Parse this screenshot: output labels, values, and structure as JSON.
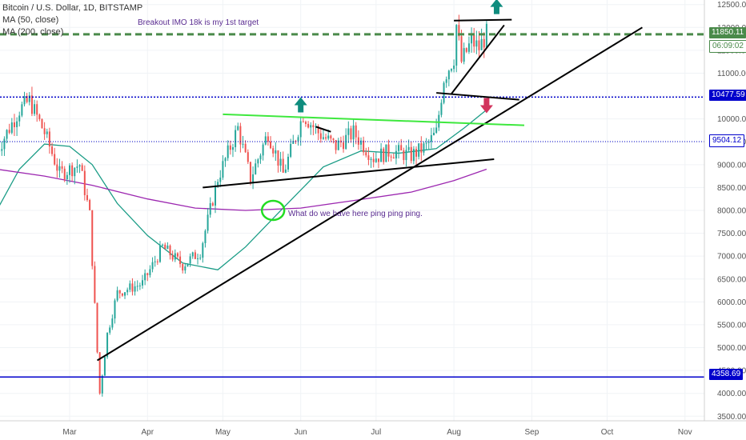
{
  "header": {
    "symbol_line": "Bitcoin / U.S. Dollar, 1D, BITSTAMP",
    "ma_fast": "MA (50, close)",
    "ma_slow": "MA (200, close)"
  },
  "annotations": {
    "breakout_note": "Breakout IMO 18k is my 1st target",
    "ping_note": "What do we have here ping ping ping."
  },
  "price_tags": {
    "last": "11850.11",
    "countdown": "06:09:02",
    "level_high": "10477.59",
    "level_mid": "9504.12",
    "level_low": "4358.69"
  },
  "colors": {
    "up_candle": "#26a69a",
    "down_candle": "#ef5350",
    "ma50": "#1a9c86",
    "ma200": "#9c27b0",
    "trend_line": "#000000",
    "resistance_line": "#3ee83e",
    "level_line": "#0000cc",
    "last_price_line": "#4a8a4a",
    "arrow_up": "#0f8c7e",
    "arrow_down": "#d2335c"
  },
  "chart_data": {
    "type": "candlestick",
    "symbol": "Bitcoin / U.S. Dollar",
    "timeframe": "1D",
    "exchange": "BITSTAMP",
    "ylim": [
      3400,
      12600
    ],
    "y_ticks": [
      3500,
      4000,
      4500,
      5000,
      5500,
      6000,
      6500,
      7000,
      7500,
      8000,
      8500,
      9000,
      9500,
      10000,
      10500,
      11000,
      11500,
      12000,
      12500
    ],
    "y_tick_labels": [
      "3500.00",
      "4000.00",
      "4500.00",
      "5000.00",
      "5500.00",
      "6000.00",
      "6500.00",
      "7000.00",
      "7500.00",
      "8000.00",
      "8500.00",
      "9000.00",
      "9500.00",
      "10000.00",
      "10500.00",
      "11000.00",
      "11500.00",
      "12000.00",
      "12500.00"
    ],
    "x_labels": [
      "Mar",
      "Apr",
      "May",
      "Jun",
      "Jul",
      "Aug",
      "Sep",
      "Oct",
      "Nov"
    ],
    "price_path": [
      [
        "2020-02-01",
        9300
      ],
      [
        "2020-02-10",
        10200
      ],
      [
        "2020-02-14",
        10400
      ],
      [
        "2020-02-20",
        9700
      ],
      [
        "2020-02-26",
        8800
      ],
      [
        "2020-03-05",
        9000
      ],
      [
        "2020-03-09",
        7900
      ],
      [
        "2020-03-12",
        4900
      ],
      [
        "2020-03-13",
        4000
      ],
      [
        "2020-03-16",
        5300
      ],
      [
        "2020-03-20",
        6200
      ],
      [
        "2020-03-30",
        6400
      ],
      [
        "2020-04-07",
        7200
      ],
      [
        "2020-04-15",
        6800
      ],
      [
        "2020-04-22",
        7100
      ],
      [
        "2020-04-29",
        8700
      ],
      [
        "2020-05-07",
        9800
      ],
      [
        "2020-05-12",
        8700
      ],
      [
        "2020-05-19",
        9700
      ],
      [
        "2020-05-25",
        8800
      ],
      [
        "2020-06-02",
        10100
      ],
      [
        "2020-06-08",
        9700
      ],
      [
        "2020-06-15",
        9400
      ],
      [
        "2020-06-22",
        9700
      ],
      [
        "2020-06-30",
        9150
      ],
      [
        "2020-07-07",
        9300
      ],
      [
        "2020-07-15",
        9200
      ],
      [
        "2020-07-21",
        9400
      ],
      [
        "2020-07-25",
        9700
      ],
      [
        "2020-07-28",
        10900
      ],
      [
        "2020-08-01",
        11350
      ],
      [
        "2020-08-02",
        12050
      ],
      [
        "2020-08-04",
        11250
      ],
      [
        "2020-08-08",
        11700
      ],
      [
        "2020-08-11",
        11550
      ],
      [
        "2020-08-14",
        11850
      ]
    ],
    "series": [
      {
        "name": "MA (50, close)",
        "points": [
          [
            "2020-02-01",
            8000
          ],
          [
            "2020-02-10",
            8900
          ],
          [
            "2020-02-20",
            9450
          ],
          [
            "2020-03-01",
            9400
          ],
          [
            "2020-03-10",
            9000
          ],
          [
            "2020-03-20",
            8150
          ],
          [
            "2020-04-01",
            7450
          ],
          [
            "2020-04-15",
            6850
          ],
          [
            "2020-04-29",
            6700
          ],
          [
            "2020-05-10",
            7200
          ],
          [
            "2020-05-25",
            8050
          ],
          [
            "2020-06-10",
            8950
          ],
          [
            "2020-06-25",
            9300
          ],
          [
            "2020-07-10",
            9250
          ],
          [
            "2020-07-25",
            9350
          ],
          [
            "2020-08-05",
            9800
          ],
          [
            "2020-08-14",
            10200
          ]
        ]
      },
      {
        "name": "MA (200, close)",
        "points": [
          [
            "2020-02-01",
            8900
          ],
          [
            "2020-02-20",
            8750
          ],
          [
            "2020-03-10",
            8550
          ],
          [
            "2020-04-01",
            8250
          ],
          [
            "2020-04-20",
            8050
          ],
          [
            "2020-05-10",
            8000
          ],
          [
            "2020-06-01",
            8050
          ],
          [
            "2020-06-20",
            8200
          ],
          [
            "2020-07-15",
            8400
          ],
          [
            "2020-08-01",
            8650
          ],
          [
            "2020-08-14",
            8900
          ]
        ]
      }
    ],
    "levels": [
      {
        "price": 11850.11,
        "style": "dashed"
      },
      {
        "price": 10477.59,
        "style": "dotted"
      },
      {
        "price": 9504.12,
        "style": "dotted"
      },
      {
        "price": 4358.69,
        "style": "solid"
      }
    ],
    "trendlines": [
      {
        "from": [
          "2020-03-12",
          4720
        ],
        "to": [
          "2020-10-15",
          12000
        ]
      },
      {
        "from": [
          "2020-04-23",
          8500
        ],
        "to": [
          "2020-08-17",
          9120
        ]
      },
      {
        "from": [
          "2020-05-01",
          10100
        ],
        "to": [
          "2020-08-29",
          9860
        ]
      },
      {
        "from": [
          "2020-06-07",
          9830
        ],
        "to": [
          "2020-06-13",
          9720
        ]
      },
      {
        "from": [
          "2020-07-25",
          10570
        ],
        "to": [
          "2020-08-27",
          10420
        ]
      },
      {
        "from": [
          "2020-08-01",
          12150
        ],
        "to": [
          "2020-08-24",
          12170
        ]
      },
      {
        "from": [
          "2020-07-31",
          10550
        ],
        "to": [
          "2020-08-21",
          12050
        ]
      }
    ],
    "markers": [
      {
        "type": "arrow-up",
        "at": [
          "2020-06-01",
          10300
        ]
      },
      {
        "type": "arrow-down",
        "at": [
          "2020-08-14",
          10300
        ]
      },
      {
        "type": "arrow-up",
        "at": [
          "2020-08-18",
          12450
        ]
      },
      {
        "type": "circle",
        "at": [
          "2020-05-21",
          8000
        ]
      }
    ],
    "grid": true,
    "legend": "top-left"
  }
}
